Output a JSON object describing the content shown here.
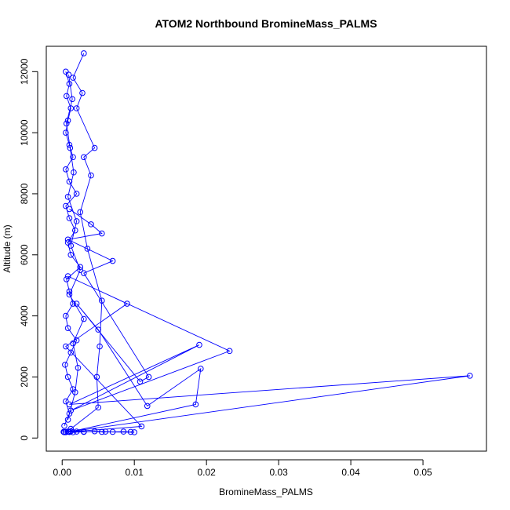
{
  "chart_data": {
    "type": "line",
    "title": "ATOM2 Northbound BromineMass_PALMS",
    "xlabel": "BromineMass_PALMS",
    "ylabel": "Altitude (m)",
    "xlim": [
      -0.0022,
      0.0588
    ],
    "ylim": [
      -430,
      12830
    ],
    "xticks": [
      0.0,
      0.01,
      0.02,
      0.03,
      0.04,
      0.05
    ],
    "xtick_labels": [
      "0.00",
      "0.01",
      "0.02",
      "0.03",
      "0.04",
      "0.05"
    ],
    "yticks": [
      0,
      2000,
      4000,
      6000,
      8000,
      10000,
      12000
    ],
    "ytick_labels": [
      "0",
      "2000",
      "4000",
      "6000",
      "8000",
      "10000",
      "12000"
    ],
    "grid": false,
    "marker": "open-circle",
    "series_color": "#0000ff",
    "series": [
      {
        "x": [
          0.0002,
          0.0008,
          0.0015,
          0.003,
          0.0045,
          0.006,
          0.007,
          0.0085,
          0.0095,
          0.01,
          0.0055,
          0.003,
          0.0012,
          0.0005,
          0.002,
          0.001,
          0.0003
        ],
        "y": [
          200,
          210,
          190,
          200,
          220,
          210,
          200,
          210,
          200,
          190,
          200,
          210,
          220,
          200,
          210,
          200,
          190
        ]
      },
      {
        "x": [
          0.0003,
          0.001,
          0.0005,
          0.0015,
          0.0008,
          0.0004,
          0.0012,
          0.002,
          0.0008,
          0.0005,
          0.0015,
          0.001,
          0.0006,
          0.0025,
          0.0012,
          0.0008,
          0.0018,
          0.001,
          0.0005,
          0.002,
          0.001,
          0.0005,
          0.0015,
          0.001,
          0.0005,
          0.0008,
          0.0012,
          0.0006,
          0.001,
          0.0005
        ],
        "y": [
          400,
          800,
          1200,
          1600,
          2000,
          2400,
          2800,
          3200,
          3600,
          4000,
          4400,
          4800,
          5200,
          5600,
          6000,
          6400,
          6800,
          7200,
          7600,
          8000,
          8400,
          8800,
          9200,
          9600,
          10000,
          10400,
          10800,
          11200,
          11600,
          12000
        ]
      },
      {
        "x": [
          0.0005,
          0.0565,
          0.001,
          0.019,
          0.0012,
          0.0232,
          0.0008,
          0.009,
          0.0005,
          0.011,
          0.001
        ],
        "y": [
          190,
          2040,
          1100,
          3050,
          900,
          2850,
          5300,
          4400,
          3000,
          380,
          200
        ]
      },
      {
        "x": [
          0.001,
          0.0185,
          0.0192,
          0.0118,
          0.005,
          0.002,
          0.0108,
          0.012,
          0.003,
          0.007,
          0.0008,
          0.0055,
          0.004,
          0.001
        ],
        "y": [
          200,
          1100,
          2270,
          1050,
          3550,
          4400,
          1850,
          2000,
          5400,
          5800,
          6500,
          6700,
          7000,
          7500
        ]
      },
      {
        "x": [
          0.0012,
          0.005,
          0.0048,
          0.0052,
          0.0055,
          0.0035,
          0.0025,
          0.004,
          0.003,
          0.0045,
          0.002,
          0.0028,
          0.0015,
          0.003
        ],
        "y": [
          300,
          1000,
          2000,
          3000,
          4500,
          6200,
          7400,
          8600,
          9200,
          9500,
          10800,
          11300,
          11800,
          12600
        ]
      },
      {
        "x": [
          0.0008,
          0.0018,
          0.0022,
          0.0015,
          0.003,
          0.001,
          0.0025,
          0.0012,
          0.002,
          0.0008,
          0.0016,
          0.0011,
          0.0006,
          0.0014,
          0.0009
        ],
        "y": [
          600,
          1500,
          2300,
          3100,
          3900,
          4700,
          5500,
          6300,
          7100,
          7900,
          8700,
          9500,
          10300,
          11100,
          11900
        ]
      }
    ]
  }
}
